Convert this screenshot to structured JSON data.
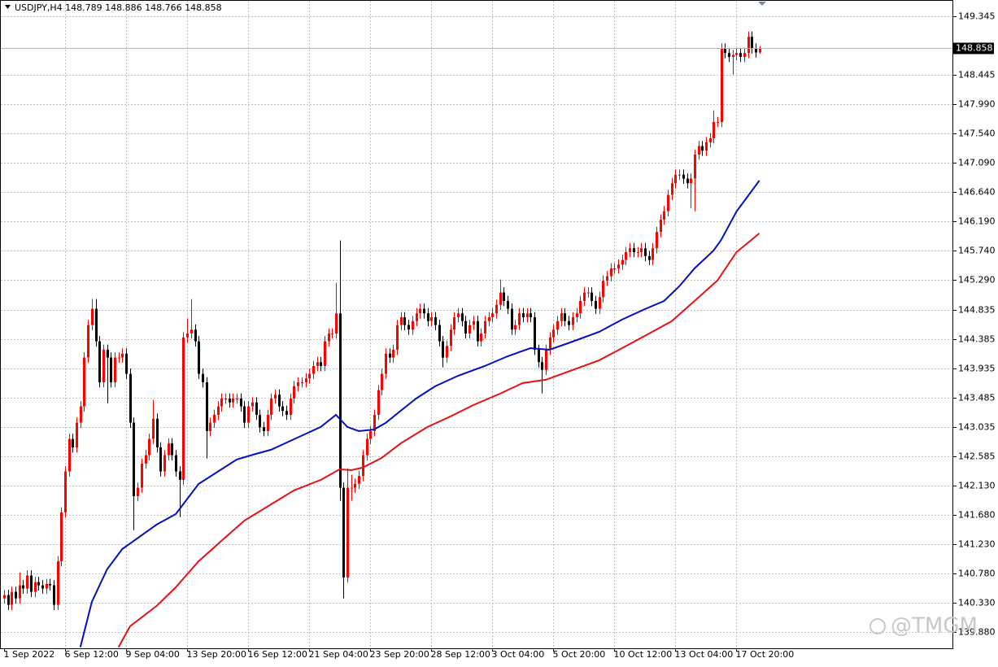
{
  "chart_data": {
    "type": "candlestick",
    "title": "USDJPY,H4  148.789 148.886 148.766 148.858",
    "watermark": "@TMGM",
    "up_color": "#ff0000",
    "down_color": "#000000",
    "grid": true,
    "current_price": 148.858,
    "ylim": [
      139.632,
      149.595
    ],
    "yticks": [
      149.345,
      148.445,
      {
        "value": 147.99,
        "label": "147.990"
      },
      {
        "value": 147.54,
        "label": "147.540"
      },
      {
        "value": 147.09,
        "label": "147.090"
      },
      {
        "value": 146.64,
        "label": "146.640"
      },
      {
        "value": 146.19,
        "label": "146.190"
      },
      {
        "value": 145.74,
        "label": "145.740"
      },
      {
        "value": 145.29,
        "label": "145.290"
      },
      144.835,
      144.385,
      143.935,
      143.485,
      143.035,
      142.585,
      {
        "value": 142.13,
        "label": "142.130"
      },
      {
        "value": 141.68,
        "label": "141.680"
      },
      {
        "value": 141.23,
        "label": "141.230"
      },
      {
        "value": 140.78,
        "label": "140.780"
      },
      {
        "value": 140.33,
        "label": "140.330"
      },
      {
        "value": 139.88,
        "label": "139.880"
      }
    ],
    "xticks": [
      {
        "value": 0,
        "label": "1 Sep 2022"
      },
      {
        "value": 16,
        "label": "6 Sep 12:00"
      },
      {
        "value": 32,
        "label": "9 Sep 04:00"
      },
      {
        "value": 48,
        "label": "13 Sep 20:00"
      },
      {
        "value": 64,
        "label": "16 Sep 12:00"
      },
      {
        "value": 80,
        "label": "21 Sep 04:00"
      },
      {
        "value": 96,
        "label": "23 Sep 20:00"
      },
      {
        "value": 112,
        "label": "28 Sep 12:00"
      },
      {
        "value": 128,
        "label": "3 Oct 04:00"
      },
      {
        "value": 144,
        "label": "5 Oct 20:00"
      },
      {
        "value": 160,
        "label": "10 Oct 12:00"
      },
      {
        "value": 176,
        "label": "13 Oct 04:00"
      },
      {
        "value": 192,
        "label": "17 Oct 20:00"
      }
    ],
    "open": [
      140.4,
      140.45,
      140.3,
      140.5,
      140.4,
      140.6,
      140.55,
      140.75,
      140.5,
      140.65,
      140.6,
      140.55,
      140.62,
      140.6,
      140.3,
      140.97,
      141.72,
      142.35,
      142.85,
      142.72,
      143.1,
      143.35,
      144.1,
      144.6,
      144.85,
      144.35,
      143.72,
      144.22,
      144.1,
      143.72,
      144.1,
      144.1,
      144.16,
      143.85,
      143.1,
      141.97,
      142.1,
      142.47,
      142.6,
      142.85,
      143.16,
      142.72,
      142.35,
      142.6,
      142.78,
      142.6,
      142.35,
      142.22,
      144.41,
      144.47,
      144.53,
      144.35,
      143.85,
      143.72,
      142.97,
      143.1,
      143.22,
      143.35,
      143.47,
      143.47,
      143.41,
      143.47,
      143.47,
      143.35,
      143.1,
      143.35,
      143.41,
      143.22,
      143.03,
      142.97,
      143.22,
      143.47,
      143.53,
      143.35,
      143.28,
      143.22,
      143.47,
      143.66,
      143.72,
      143.72,
      143.78,
      143.85,
      143.97,
      144.03,
      143.97,
      144.35,
      144.47,
      144.47,
      144.78,
      142.1,
      140.72,
      142.1,
      142.1,
      142.16,
      142.28,
      142.6,
      142.85,
      142.97,
      143.22,
      143.6,
      143.85,
      144.16,
      144.1,
      144.22,
      144.6,
      144.72,
      144.6,
      144.53,
      144.66,
      144.78,
      144.85,
      144.78,
      144.66,
      144.72,
      144.6,
      144.35,
      144.1,
      144.28,
      144.53,
      144.72,
      144.78,
      144.66,
      144.47,
      144.6,
      144.66,
      144.35,
      144.47,
      144.66,
      144.72,
      144.78,
      144.91,
      145.1,
      144.97,
      144.85,
      144.53,
      144.6,
      144.78,
      144.72,
      144.78,
      144.72,
      144.22,
      144.03,
      143.91,
      144.22,
      144.41,
      144.53,
      144.66,
      144.78,
      144.66,
      144.6,
      144.72,
      144.78,
      144.97,
      145.1,
      145.1,
      144.97,
      144.85,
      145.03,
      145.28,
      145.35,
      145.47,
      145.47,
      145.53,
      145.6,
      145.72,
      145.78,
      145.72,
      145.72,
      145.78,
      145.66,
      145.6,
      145.78,
      146.03,
      146.22,
      146.35,
      146.6,
      146.78,
      146.91,
      146.91,
      146.85,
      146.78,
      146.85,
      147.22,
      147.35,
      147.28,
      147.41,
      147.47,
      147.72,
      147.72,
      148.85,
      148.78,
      148.72,
      148.75,
      148.78,
      148.72,
      148.78,
      149.03,
      148.85,
      148.789
    ],
    "high": [
      140.53,
      140.53,
      140.58,
      140.58,
      140.8,
      140.68,
      140.83,
      140.83,
      140.73,
      140.73,
      140.68,
      140.7,
      140.7,
      140.68,
      141.05,
      141.8,
      142.43,
      142.93,
      142.93,
      143.18,
      143.43,
      144.18,
      144.68,
      145.0,
      145.0,
      144.43,
      144.3,
      144.3,
      144.18,
      144.18,
      144.18,
      144.24,
      144.24,
      143.93,
      143.18,
      142.18,
      142.55,
      142.68,
      142.93,
      143.45,
      143.24,
      142.8,
      142.68,
      142.86,
      142.86,
      142.68,
      142.43,
      144.49,
      144.7,
      145.0,
      144.61,
      144.43,
      143.93,
      143.8,
      143.18,
      143.3,
      143.43,
      143.55,
      143.55,
      143.55,
      143.55,
      143.55,
      143.55,
      143.43,
      143.43,
      143.49,
      143.49,
      143.3,
      143.11,
      143.3,
      143.55,
      143.61,
      143.61,
      143.43,
      143.36,
      143.55,
      143.74,
      143.8,
      143.8,
      143.86,
      143.93,
      144.05,
      144.11,
      144.11,
      144.43,
      144.55,
      144.55,
      145.25,
      145.9,
      142.18,
      142.4,
      142.3,
      142.24,
      142.36,
      142.68,
      142.93,
      143.05,
      143.3,
      143.68,
      143.93,
      144.24,
      144.24,
      144.3,
      144.68,
      144.8,
      144.8,
      144.68,
      144.74,
      144.86,
      144.93,
      144.93,
      144.86,
      144.8,
      144.8,
      144.68,
      144.43,
      144.36,
      144.61,
      144.8,
      144.86,
      144.86,
      144.74,
      144.68,
      144.74,
      144.74,
      144.55,
      144.74,
      144.8,
      144.86,
      144.99,
      145.3,
      145.18,
      145.05,
      144.93,
      144.68,
      144.86,
      144.86,
      144.86,
      144.86,
      144.8,
      144.3,
      144.11,
      144.3,
      144.49,
      144.61,
      144.74,
      144.86,
      144.86,
      144.74,
      144.8,
      144.86,
      145.05,
      145.18,
      145.18,
      145.18,
      145.05,
      145.11,
      145.36,
      145.43,
      145.55,
      145.55,
      145.61,
      145.68,
      145.8,
      145.86,
      145.86,
      145.8,
      145.86,
      145.86,
      145.74,
      145.86,
      146.11,
      146.3,
      146.43,
      146.68,
      146.86,
      146.99,
      146.99,
      146.99,
      146.93,
      146.93,
      147.3,
      147.43,
      147.43,
      147.49,
      147.55,
      147.9,
      147.8,
      148.93,
      148.93,
      148.86,
      148.83,
      148.86,
      148.86,
      148.86,
      149.11,
      149.11,
      148.93,
      148.886
    ],
    "low": [
      140.32,
      140.22,
      140.22,
      140.32,
      140.32,
      140.47,
      140.47,
      140.42,
      140.42,
      140.52,
      140.47,
      140.47,
      140.52,
      140.22,
      140.22,
      140.89,
      141.64,
      142.27,
      142.64,
      142.64,
      143.02,
      143.27,
      144.02,
      144.52,
      144.27,
      143.64,
      143.64,
      143.4,
      143.64,
      143.64,
      144.02,
      144.02,
      143.77,
      143.02,
      141.45,
      141.89,
      142.02,
      142.39,
      142.52,
      142.77,
      142.64,
      142.27,
      142.27,
      142.52,
      142.52,
      142.27,
      141.65,
      142.14,
      144.33,
      144.39,
      144.27,
      143.77,
      143.64,
      142.55,
      142.89,
      143.02,
      143.14,
      143.27,
      143.39,
      143.33,
      143.33,
      143.39,
      143.27,
      143.02,
      143.02,
      143.27,
      143.14,
      142.95,
      142.89,
      142.89,
      143.14,
      143.39,
      143.27,
      143.2,
      143.14,
      143.14,
      143.39,
      143.58,
      143.64,
      143.64,
      143.7,
      143.77,
      143.89,
      143.89,
      143.89,
      144.27,
      144.39,
      144.39,
      141.9,
      140.4,
      140.64,
      141.9,
      142.02,
      142.08,
      142.2,
      142.52,
      142.77,
      142.89,
      143.14,
      143.52,
      143.77,
      144.02,
      144.02,
      144.14,
      144.52,
      144.52,
      144.45,
      144.45,
      144.58,
      144.7,
      144.7,
      144.58,
      144.58,
      144.52,
      144.27,
      143.95,
      144.02,
      144.2,
      144.45,
      144.64,
      144.58,
      144.39,
      144.39,
      144.52,
      144.27,
      144.27,
      144.39,
      144.58,
      144.64,
      144.7,
      144.83,
      144.89,
      144.77,
      144.45,
      144.45,
      144.52,
      144.64,
      144.64,
      144.64,
      144.14,
      143.95,
      143.55,
      143.83,
      144.14,
      144.33,
      144.45,
      144.58,
      144.58,
      144.52,
      144.52,
      144.64,
      144.7,
      144.89,
      145.02,
      144.89,
      144.77,
      144.77,
      144.95,
      145.2,
      145.27,
      145.39,
      145.39,
      145.45,
      145.52,
      145.64,
      145.64,
      145.64,
      145.64,
      145.58,
      145.52,
      145.52,
      145.7,
      145.95,
      146.14,
      146.27,
      146.52,
      146.7,
      146.83,
      146.77,
      146.7,
      146.4,
      146.35,
      147.14,
      147.2,
      147.2,
      147.33,
      147.39,
      147.64,
      147.64,
      148.7,
      148.64,
      148.45,
      148.67,
      148.64,
      148.64,
      148.7,
      148.77,
      148.71,
      148.766
    ],
    "close": [
      140.45,
      140.3,
      140.5,
      140.4,
      140.6,
      140.55,
      140.75,
      140.5,
      140.65,
      140.6,
      140.55,
      140.62,
      140.6,
      140.3,
      140.97,
      141.72,
      142.35,
      142.85,
      142.72,
      143.1,
      143.35,
      144.1,
      144.6,
      144.85,
      144.35,
      143.72,
      144.22,
      144.1,
      143.72,
      144.1,
      144.1,
      144.16,
      143.85,
      143.1,
      141.97,
      142.1,
      142.47,
      142.6,
      142.85,
      143.16,
      142.72,
      142.35,
      142.6,
      142.78,
      142.6,
      142.35,
      142.22,
      144.41,
      144.47,
      144.53,
      144.35,
      143.85,
      143.72,
      142.97,
      143.1,
      143.22,
      143.35,
      143.47,
      143.47,
      143.41,
      143.47,
      143.47,
      143.35,
      143.1,
      143.35,
      143.41,
      143.22,
      143.03,
      142.97,
      143.22,
      143.47,
      143.53,
      143.35,
      143.28,
      143.22,
      143.47,
      143.66,
      143.72,
      143.72,
      143.78,
      143.85,
      143.97,
      144.03,
      143.97,
      144.35,
      144.47,
      144.47,
      144.78,
      142.1,
      140.72,
      142.1,
      142.1,
      142.16,
      142.28,
      142.6,
      142.85,
      142.97,
      143.22,
      143.6,
      143.85,
      144.16,
      144.1,
      144.22,
      144.6,
      144.72,
      144.6,
      144.53,
      144.66,
      144.78,
      144.85,
      144.78,
      144.66,
      144.72,
      144.6,
      144.35,
      144.1,
      144.28,
      144.53,
      144.72,
      144.78,
      144.66,
      144.47,
      144.6,
      144.66,
      144.35,
      144.47,
      144.66,
      144.72,
      144.78,
      144.91,
      145.1,
      144.97,
      144.85,
      144.53,
      144.6,
      144.78,
      144.72,
      144.78,
      144.72,
      144.22,
      144.03,
      143.91,
      144.22,
      144.41,
      144.53,
      144.66,
      144.78,
      144.66,
      144.6,
      144.72,
      144.78,
      144.97,
      145.1,
      145.1,
      144.97,
      144.85,
      145.03,
      145.28,
      145.35,
      145.47,
      145.47,
      145.53,
      145.6,
      145.72,
      145.78,
      145.72,
      145.72,
      145.78,
      145.66,
      145.6,
      145.78,
      146.03,
      146.22,
      146.35,
      146.6,
      146.78,
      146.91,
      146.91,
      146.85,
      146.78,
      146.85,
      147.22,
      147.35,
      147.28,
      147.41,
      147.47,
      147.72,
      147.72,
      148.85,
      148.78,
      148.72,
      148.75,
      148.78,
      148.72,
      148.78,
      149.03,
      148.85,
      148.789,
      148.858
    ],
    "overlays": [
      {
        "color": "#0010c0",
        "x": [
          20,
          23,
          27,
          31,
          34,
          40,
          45,
          51,
          55,
          61,
          66,
          70,
          76,
          83,
          87,
          90,
          93,
          97,
          100,
          104,
          108,
          113,
          119,
          126,
          132,
          138,
          143,
          149,
          156,
          162,
          168,
          173,
          177,
          181,
          186,
          188,
          192,
          198
        ],
        "values": [
          139.65,
          140.345,
          140.845,
          141.158,
          141.283,
          141.533,
          141.695,
          142.158,
          142.308,
          142.533,
          142.62,
          142.683,
          142.845,
          143.033,
          143.22,
          143.033,
          142.97,
          142.995,
          143.095,
          143.283,
          143.47,
          143.658,
          143.82,
          143.97,
          144.12,
          144.245,
          144.22,
          144.345,
          144.495,
          144.683,
          144.845,
          144.97,
          145.195,
          145.47,
          145.745,
          145.908,
          146.345,
          146.82
        ]
      },
      {
        "color": "#e81010",
        "x": [
          30,
          33,
          40,
          45,
          51,
          57,
          63,
          70,
          76,
          83,
          88,
          91,
          94,
          99,
          104,
          111,
          117,
          123,
          130,
          136,
          142,
          149,
          156,
          162,
          168,
          175,
          181,
          187,
          192,
          198
        ],
        "values": [
          139.65,
          139.97,
          140.283,
          140.57,
          140.97,
          141.283,
          141.595,
          141.845,
          142.058,
          142.22,
          142.383,
          142.37,
          142.408,
          142.558,
          142.783,
          143.033,
          143.195,
          143.37,
          143.545,
          143.708,
          143.758,
          143.908,
          144.058,
          144.245,
          144.433,
          144.658,
          144.97,
          145.283,
          145.72,
          146.008
        ]
      }
    ]
  }
}
